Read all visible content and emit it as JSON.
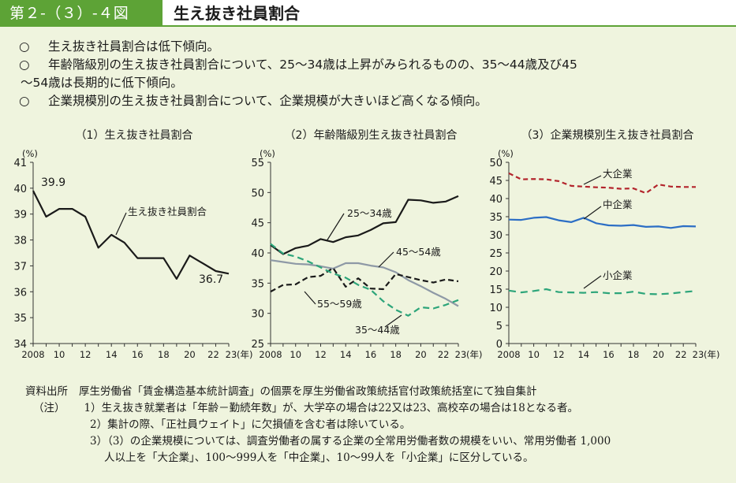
{
  "header": {
    "figure_no": "第２-（３）-４図",
    "title": "生え抜き社員割合"
  },
  "summary": {
    "mark": "○",
    "bullets": [
      {
        "text": "生え抜き社員割合は低下傾向。"
      },
      {
        "text": "年齢階級別の生え抜き社員割合について、25～34歳は上昇がみられるものの、35～44歳及び45",
        "cont": "～54歳は長期的に低下傾向。"
      },
      {
        "text": "企業規模別の生え抜き社員割合について、企業規模が大きいほど高くなる傾向。"
      }
    ]
  },
  "chart_data": [
    {
      "type": "line",
      "title": "（1）生え抜き社員割合",
      "ylabel": "(%)",
      "xlabel_unit": "(年)",
      "x_ticks": [
        "2008",
        "10",
        "12",
        "14",
        "16",
        "18",
        "20",
        "22",
        "23"
      ],
      "ylim": [
        34,
        41
      ],
      "y_ticks": [
        34,
        35,
        36,
        37,
        38,
        39,
        40,
        41
      ],
      "x": [
        2008,
        2009,
        2010,
        2011,
        2012,
        2013,
        2014,
        2015,
        2016,
        2017,
        2018,
        2019,
        2020,
        2021,
        2022,
        2023
      ],
      "series": [
        {
          "name": "生え抜き社員割合",
          "color": "#1a1a1a",
          "dash": "",
          "values": [
            39.9,
            38.9,
            39.2,
            39.2,
            38.9,
            37.7,
            38.2,
            37.9,
            37.3,
            37.3,
            37.3,
            36.5,
            37.4,
            37.1,
            36.8,
            36.7
          ]
        }
      ],
      "data_labels": [
        {
          "text": "39.9"
        },
        {
          "text": "36.7"
        }
      ]
    },
    {
      "type": "line",
      "title": "（2）年齢階級別生え抜き社員割合",
      "ylabel": "(%)",
      "xlabel_unit": "(年)",
      "x_ticks": [
        "2008",
        "10",
        "12",
        "14",
        "16",
        "18",
        "20",
        "22",
        "23"
      ],
      "ylim": [
        25,
        55
      ],
      "y_ticks": [
        25,
        30,
        35,
        40,
        45,
        50,
        55
      ],
      "x": [
        2008,
        2009,
        2010,
        2011,
        2012,
        2013,
        2014,
        2015,
        2016,
        2017,
        2018,
        2019,
        2020,
        2021,
        2022,
        2023
      ],
      "series": [
        {
          "name": "25～34歳",
          "color": "#1a1a1a",
          "dash": "",
          "values": [
            41.3,
            39.8,
            40.8,
            41.2,
            42.3,
            41.8,
            42.6,
            42.9,
            43.8,
            44.9,
            45.1,
            48.8,
            48.7,
            48.3,
            48.5,
            49.4
          ]
        },
        {
          "name": "45～54歳",
          "color": "#8e99a6",
          "dash": "",
          "values": [
            38.8,
            38.5,
            38.2,
            38.1,
            37.8,
            37.4,
            38.3,
            38.3,
            37.9,
            37.6,
            36.8,
            35.5,
            34.5,
            33.4,
            32.4,
            31.2
          ]
        },
        {
          "name": "55～59歳",
          "color": "#1a1a1a",
          "dash": "7,4",
          "values": [
            33.6,
            34.7,
            34.8,
            36.0,
            36.2,
            37.5,
            34.4,
            35.8,
            34.1,
            34.0,
            36.5,
            36.0,
            35.5,
            35.1,
            35.6,
            35.3
          ]
        },
        {
          "name": "35～44歳",
          "color": "#2da57a",
          "dash": "8,5",
          "values": [
            41.5,
            39.9,
            39.4,
            38.6,
            37.6,
            36.6,
            35.9,
            34.7,
            33.9,
            32.0,
            30.6,
            29.6,
            31.0,
            30.8,
            31.4,
            32.2
          ]
        }
      ]
    },
    {
      "type": "line",
      "title": "（3）企業規模別生え抜き社員割合",
      "ylabel": "(%)",
      "xlabel_unit": "(年)",
      "x_ticks": [
        "2008",
        "10",
        "12",
        "14",
        "16",
        "18",
        "20",
        "22",
        "23"
      ],
      "ylim": [
        0,
        50
      ],
      "y_ticks": [
        0,
        5,
        10,
        15,
        20,
        25,
        30,
        35,
        40,
        45,
        50
      ],
      "x": [
        2008,
        2009,
        2010,
        2011,
        2012,
        2013,
        2014,
        2015,
        2016,
        2017,
        2018,
        2019,
        2020,
        2021,
        2022,
        2023
      ],
      "series": [
        {
          "name": "大企業",
          "color": "#b3242c",
          "dash": "6,4",
          "values": [
            47.0,
            45.3,
            45.4,
            45.3,
            44.8,
            43.5,
            43.3,
            43.1,
            43.0,
            42.7,
            42.8,
            41.5,
            43.9,
            43.3,
            43.2,
            43.2
          ]
        },
        {
          "name": "中企業",
          "color": "#2c6ec5",
          "dash": "",
          "values": [
            34.2,
            34.1,
            34.7,
            34.9,
            34.0,
            33.5,
            34.7,
            33.2,
            32.6,
            32.5,
            32.7,
            32.2,
            32.3,
            31.9,
            32.4,
            32.3
          ]
        },
        {
          "name": "小企業",
          "color": "#2da57a",
          "dash": "9,6",
          "values": [
            14.6,
            14.1,
            14.5,
            15.0,
            14.2,
            14.1,
            14.0,
            14.2,
            13.9,
            13.9,
            14.3,
            13.7,
            13.6,
            13.8,
            14.2,
            14.5
          ]
        }
      ]
    }
  ],
  "notes": {
    "source_label": "資料出所",
    "source_text": "厚生労働省「賃金構造基本統計調査」の個票を厚生労働省政策統括官付政策統括室にて独自集計",
    "notes_label": "（注）",
    "items": [
      "1）生え抜き就業者は「年齢－勤続年数」が、大学卒の場合は22又は23、高校卒の場合は18となる者。",
      "2）集計の際、「正社員ウェイト」に欠損値を含む者は除いている。",
      "3）（3）の企業規模については、調査労働者の属する企業の全常用労働者数の規模をいい、常用労働者 1,000"
    ],
    "item3_cont": "人以上を「大企業」、100～999人を「中企業」、10～99人を「小企業」に区分している。"
  }
}
